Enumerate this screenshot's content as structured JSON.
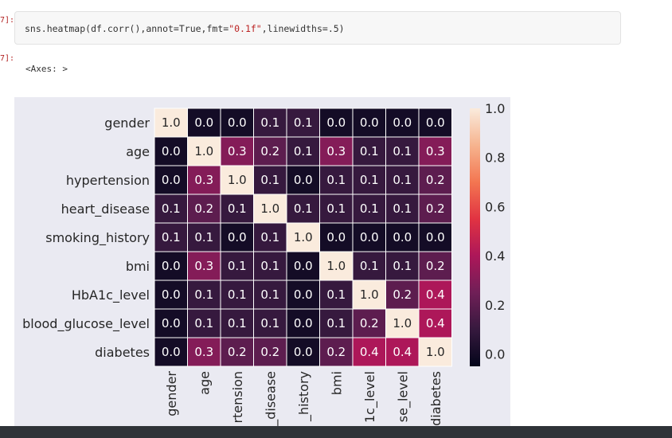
{
  "cell": {
    "in_prompt": "7]:",
    "out_prompt": "7]:",
    "code_prefix": "sns.heatmap(df.corr(),annot=True,fmt=",
    "code_string": "\"0.1f\"",
    "code_suffix": ",linewidths=.5)",
    "output_text": "<Axes: >"
  },
  "colors": {
    "cmap": [
      "#03051a",
      "#36193e",
      "#701f57",
      "#ad1759",
      "#e13342",
      "#f37651",
      "#f6b48f",
      "#faebdd"
    ]
  },
  "chart_data": {
    "type": "heatmap",
    "title": "",
    "labels": [
      "gender",
      "age",
      "hypertension",
      "heart_disease",
      "smoking_history",
      "bmi",
      "HbA1c_level",
      "blood_glucose_level",
      "diabetes"
    ],
    "x_tick_labels": [
      "gender",
      "age",
      "rtension",
      "_disease",
      "_history",
      "bmi",
      "1c_level",
      "se_level",
      "diabetes"
    ],
    "values": [
      [
        1.0,
        -0.0,
        0.0,
        0.1,
        0.1,
        -0.0,
        0.0,
        0.0,
        0.0
      ],
      [
        -0.0,
        1.0,
        0.3,
        0.2,
        0.1,
        0.3,
        0.1,
        0.1,
        0.3
      ],
      [
        0.0,
        0.3,
        1.0,
        0.1,
        0.0,
        0.1,
        0.1,
        0.1,
        0.2
      ],
      [
        0.1,
        0.2,
        0.1,
        1.0,
        0.1,
        0.1,
        0.1,
        0.1,
        0.2
      ],
      [
        0.1,
        0.1,
        0.0,
        0.1,
        1.0,
        0.0,
        0.0,
        0.0,
        0.0
      ],
      [
        -0.0,
        0.3,
        0.1,
        0.1,
        0.0,
        1.0,
        0.1,
        0.1,
        0.2
      ],
      [
        0.0,
        0.1,
        0.1,
        0.1,
        0.0,
        0.1,
        1.0,
        0.2,
        0.4
      ],
      [
        0.0,
        0.1,
        0.1,
        0.1,
        0.0,
        0.1,
        0.2,
        1.0,
        0.4
      ],
      [
        0.0,
        0.3,
        0.2,
        0.2,
        0.0,
        0.2,
        0.4,
        0.4,
        1.0
      ]
    ],
    "colorbar": {
      "ticks": [
        "0.0",
        "0.2",
        "0.4",
        "0.6",
        "0.8",
        "1.0"
      ],
      "range": [
        -0.05,
        1.0
      ]
    }
  }
}
